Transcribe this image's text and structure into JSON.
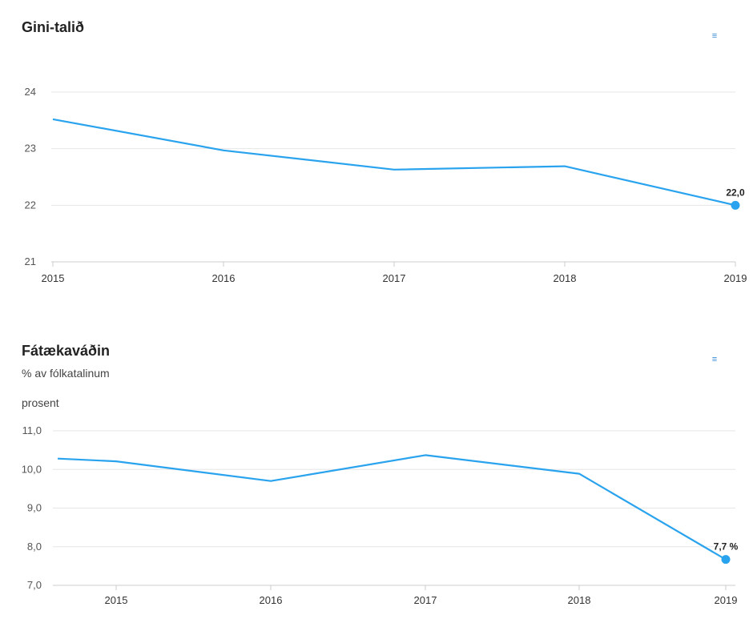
{
  "chart_data": [
    {
      "type": "line",
      "title": "Gini-talið",
      "subtitle": "",
      "ylabel": "",
      "x": [
        "2015",
        "2016",
        "2017",
        "2018",
        "2019"
      ],
      "series": [
        {
          "values": [
            23.52,
            22.97,
            22.63,
            22.69,
            22.0
          ]
        }
      ],
      "x_range": [
        2015,
        2019
      ],
      "y_ticks": [
        "21",
        "22",
        "23",
        "24"
      ],
      "ylim": [
        21,
        24
      ],
      "last_label": "22,0",
      "grid": true,
      "line_color": "#2aa3ee"
    },
    {
      "type": "line",
      "title": "Fátækaváðin",
      "subtitle": "% av fólkatalinum",
      "ylabel": "prosent",
      "x": [
        "2015",
        "2016",
        "2017",
        "2018",
        "2019"
      ],
      "series": [
        {
          "values": [
            10.21,
            9.7,
            10.37,
            9.89,
            7.67
          ]
        }
      ],
      "x_range": [
        2015,
        2019
      ],
      "y_ticks": [
        "7,0",
        "8,0",
        "9,0",
        "10,0",
        "11,0"
      ],
      "ylim": [
        7,
        11
      ],
      "last_label": "7,7 %",
      "grid": true,
      "line_color": "#2aa3ee"
    }
  ],
  "menu_icon": "hamburger-menu-icon"
}
